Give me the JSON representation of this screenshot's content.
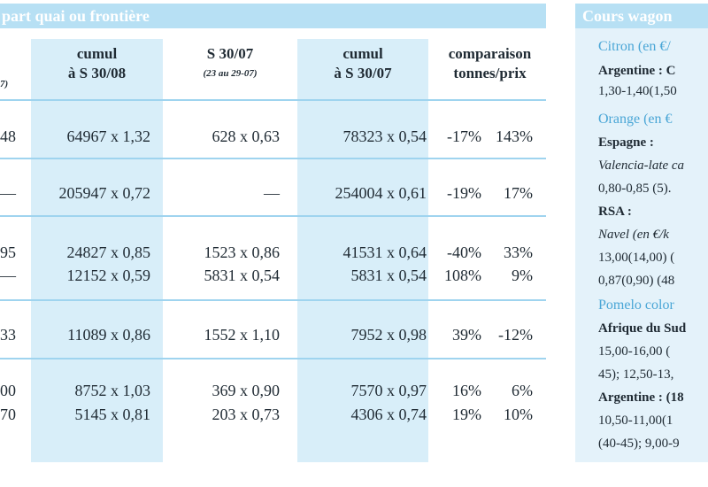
{
  "main_header": "part quai ou frontière",
  "side_header": "Cours wagon",
  "columns": [
    {
      "line1": "",
      "line2": "",
      "sub": "7)"
    },
    {
      "line1": "cumul",
      "line2": "à S 30/08",
      "sub": ""
    },
    {
      "line1": "S 30/07",
      "line2": "",
      "sub": "(23 au 29-07)"
    },
    {
      "line1": "cumul",
      "line2": "à S 30/07",
      "sub": ""
    },
    {
      "line1": "comparaison",
      "line2": "tonnes/prix",
      "sub": ""
    }
  ],
  "rows": [
    {
      "c0": "48",
      "c1": "64967 x 1,32",
      "c2": "628 x 0,63",
      "c3": "78323 x 0,54",
      "c4a": "-17%",
      "c4b": "143%"
    },
    {
      "c0": "—",
      "c1": "205947 x 0,72",
      "c2": "—",
      "c3": "254004 x 0,61",
      "c4a": "-19%",
      "c4b": "17%"
    },
    {
      "c0": "95",
      "c1": "24827 x 0,85",
      "c2": "1523 x 0,86",
      "c3": "41531 x 0,64",
      "c4a": "-40%",
      "c4b": "33%"
    },
    {
      "c0": "—",
      "c1": "12152 x 0,59",
      "c2": "5831 x 0,54",
      "c3": "5831 x 0,54",
      "c4a": "108%",
      "c4b": "9%"
    },
    {
      "c0": "33",
      "c1": "11089 x 0,86",
      "c2": "1552 x 1,10",
      "c3": "7952 x 0,98",
      "c4a": "39%",
      "c4b": "-12%"
    },
    {
      "c0": "00",
      "c1": "8752 x 1,03",
      "c2": "369 x 0,90",
      "c3": "7570 x 0,97",
      "c4a": "16%",
      "c4b": "6%"
    },
    {
      "c0": "70",
      "c1": "5145 x 0,81",
      "c2": "203 x 0,73",
      "c3": "4306 x 0,74",
      "c4a": "19%",
      "c4b": "10%"
    }
  ],
  "side_lines": [
    {
      "t": "Citron (en €/",
      "s": "c"
    },
    {
      "t": "Argentine :  C",
      "s": "b"
    },
    {
      "t": "1,30-1,40(1,50",
      "s": ""
    },
    {
      "t": "Orange (en €",
      "s": "c"
    },
    {
      "t": "Espagne :",
      "s": "b"
    },
    {
      "t": "Valencia-late ca",
      "s": "i"
    },
    {
      "t": "0,80-0,85 (5).",
      "s": ""
    },
    {
      "t": "RSA :",
      "s": "b"
    },
    {
      "t": "Navel (en €/k",
      "s": "i"
    },
    {
      "t": "13,00(14,00) (",
      "s": ""
    },
    {
      "t": "0,87(0,90) (48",
      "s": ""
    },
    {
      "t": "Pomelo color",
      "s": "c"
    },
    {
      "t": "Afrique du Sud",
      "s": "b"
    },
    {
      "t": "15,00-16,00  (",
      "s": ""
    },
    {
      "t": "45); 12,50-13,",
      "s": ""
    },
    {
      "t": "Argentine : (18",
      "s": "b"
    },
    {
      "t": "10,50-11,00(1",
      "s": ""
    },
    {
      "t": "(40-45); 9,00-9",
      "s": ""
    }
  ]
}
